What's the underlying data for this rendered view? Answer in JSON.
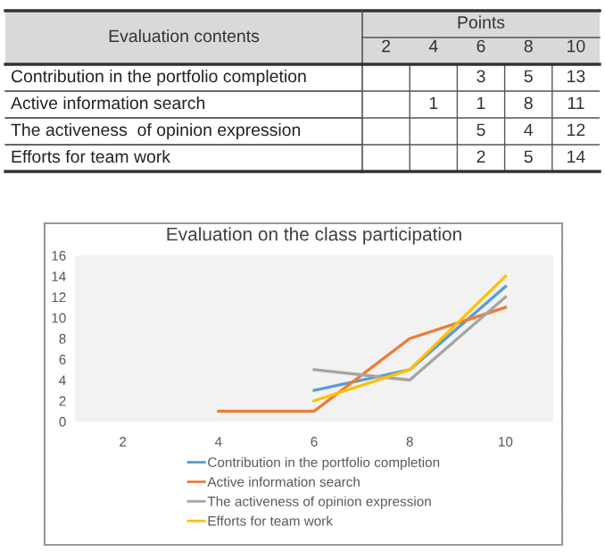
{
  "chart_data": [
    {
      "type": "heatmap",
      "xlabel": "Points",
      "annotations": [
        "Evaluation contents"
      ],
      "categories": [
        "2",
        "4",
        "6",
        "8",
        "10"
      ],
      "y_categories": [
        "Contribution in the portfolio completion",
        "Active information search",
        "The activeness  of opinion expression",
        "Efforts for team work"
      ],
      "cells": [
        [
          null,
          null,
          3,
          5,
          13
        ],
        [
          null,
          1,
          1,
          8,
          11
        ],
        [
          null,
          null,
          5,
          4,
          12
        ],
        [
          null,
          null,
          2,
          5,
          14
        ]
      ],
      "data_labels": true
    },
    {
      "type": "line",
      "title": "Evaluation on the class participation",
      "categories": [
        "2",
        "4",
        "6",
        "8",
        "10"
      ],
      "series": [
        {
          "name": "Contribution in the portfolio completion",
          "color": "#5b9bd5",
          "values": [
            null,
            null,
            3,
            5,
            13
          ]
        },
        {
          "name": "Active information search",
          "color": "#ed7d31",
          "values": [
            null,
            1,
            1,
            8,
            11
          ]
        },
        {
          "name": "The activeness of opinion expression",
          "color": "#a5a5a5",
          "values": [
            null,
            null,
            5,
            4,
            12
          ]
        },
        {
          "name": "Efforts for team work",
          "color": "#ffc000",
          "values": [
            null,
            null,
            2,
            5,
            14
          ]
        }
      ],
      "ylim": [
        0,
        16
      ],
      "yticks": [
        0,
        2,
        4,
        6,
        8,
        10,
        12,
        14,
        16
      ],
      "grid": false,
      "legend": "bottom",
      "marker": "none",
      "line_style": "solid"
    }
  ]
}
